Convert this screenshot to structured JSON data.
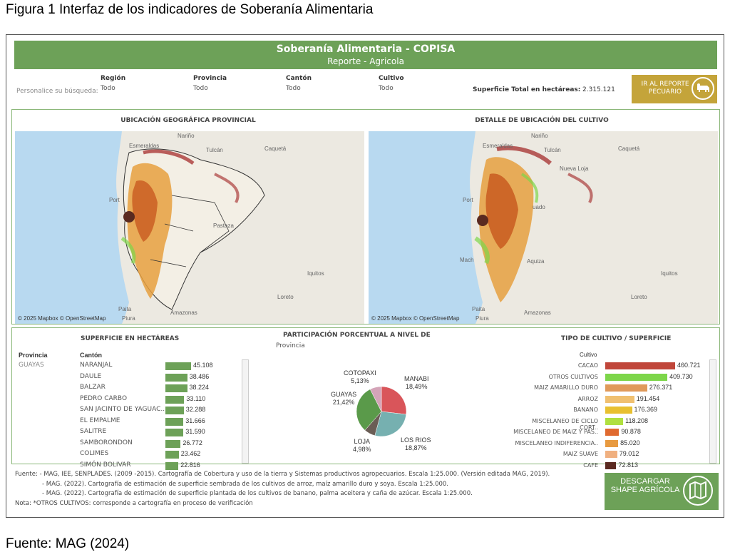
{
  "figure_title": "Figura 1 Interfaz de los indicadores de Soberanía Alimentaria",
  "figure_source": "Fuente: MAG (2024)",
  "header": {
    "title": "Soberanía Alimentaria - COPISA",
    "subtitle": "Reporte - Agricola"
  },
  "filters": {
    "personalice": "Personalice su búsqueda:",
    "region": {
      "label": "Región",
      "value": "Todo"
    },
    "provincia": {
      "label": "Provincia",
      "value": "Todo"
    },
    "canton": {
      "label": "Cantón",
      "value": "Todo"
    },
    "cultivo": {
      "label": "Cultivo",
      "value": "Todo"
    },
    "superficie_label": "Superficie Total en hectáreas:",
    "superficie_value": "2.315.121"
  },
  "btn_pecuario": "IR AL REPORTE PECUARIO",
  "maps": {
    "left_title": "UBICACIÓN GEOGRÁFICA PROVINCIAL",
    "right_title": "DETALLE DE UBICACIÓN DEL CULTIVO",
    "credit": "© 2025 Mapbox © OpenStreetMap",
    "places": {
      "narino": "Nariño",
      "esmeraldas": "Esmeraldas",
      "tulcan": "Tulcán",
      "caqueta": "Caquetá",
      "nueva_loja": "Nueva Loja",
      "port": "Port",
      "pastaza": "Pastaza",
      "iquitos": "Iquitos",
      "loreto": "Loreto",
      "paita": "Paita",
      "piura": "Piura",
      "amazonas": "Amazonas",
      "machala": "Mach",
      "aquiza": "Aquiza",
      "quito": "uado"
    }
  },
  "superficie": {
    "title": "SUPERFICIE EN HECTÁREAS",
    "col_provincia": "Provincia",
    "col_canton": "Cantón",
    "provincia": "GUAYAS",
    "rows": [
      {
        "canton": "NARANJAL",
        "value": "45.108",
        "n": 45108
      },
      {
        "canton": "DAULE",
        "value": "38.486",
        "n": 38486
      },
      {
        "canton": "BALZAR",
        "value": "38.224",
        "n": 38224
      },
      {
        "canton": "PEDRO CARBO",
        "value": "33.110",
        "n": 33110
      },
      {
        "canton": "SAN JACINTO DE YAGUAC..",
        "value": "32.288",
        "n": 32288
      },
      {
        "canton": "EL EMPALME",
        "value": "31.666",
        "n": 31666
      },
      {
        "canton": "SALITRE",
        "value": "31.590",
        "n": 31590
      },
      {
        "canton": "SAMBORONDON",
        "value": "26.772",
        "n": 26772
      },
      {
        "canton": "COLIMES",
        "value": "23.462",
        "n": 23462
      },
      {
        "canton": "SIMÓN BOLIVAR",
        "value": "22.816",
        "n": 22816
      }
    ]
  },
  "participacion": {
    "title": "PARTICIPACIÓN PORCENTUAL A NIVEL DE",
    "subtitle": "Provincia"
  },
  "chart_data": {
    "type": "pie",
    "title": "PARTICIPACIÓN PORCENTUAL A NIVEL DE",
    "slices": [
      {
        "name": "MANABI",
        "value": 18.49,
        "label": "18,49%",
        "color": "#d9555a"
      },
      {
        "name": "LOS RIOS",
        "value": 18.87,
        "label": "18,87%",
        "color": "#76b0b0"
      },
      {
        "name": "LOJA",
        "value": 4.98,
        "label": "4,98%",
        "color": "#6a5d55"
      },
      {
        "name": "GUAYAS",
        "value": 21.42,
        "label": "21,42%",
        "color": "#5a9a4a"
      },
      {
        "name": "COTOPAXI",
        "value": 5.13,
        "label": "5,13%",
        "color": "#d4a4b8"
      }
    ]
  },
  "cultivo": {
    "title": "TIPO DE CULTIVO / SUPERFICIE",
    "col": "Cultivo",
    "rows": [
      {
        "name": "CACAO",
        "value": "460.721",
        "n": 460721,
        "color": "#c0463a"
      },
      {
        "name": "OTROS CULTIVOS",
        "value": "409.730",
        "n": 409730,
        "color": "#7dd64a"
      },
      {
        "name": "MAIZ AMARILLO DURO",
        "value": "276.371",
        "n": 276371,
        "color": "#e09a5a"
      },
      {
        "name": "ARROZ",
        "value": "191.454",
        "n": 191454,
        "color": "#f0c070"
      },
      {
        "name": "BANANO",
        "value": "176.369",
        "n": 176369,
        "color": "#e8c030"
      },
      {
        "name": "MISCELANEO DE CICLO CORT..",
        "value": "118.208",
        "n": 118208,
        "color": "#b0e040"
      },
      {
        "name": "MISCELANEO DE MAIZ Y PAS..",
        "value": "90.878",
        "n": 90878,
        "color": "#e06a30"
      },
      {
        "name": "MISCELANEO INDIFERENCIA..",
        "value": "85.020",
        "n": 85020,
        "color": "#e89a40"
      },
      {
        "name": "MAIZ SUAVE",
        "value": "79.012",
        "n": 79012,
        "color": "#f0b080"
      },
      {
        "name": "CAFE",
        "value": "72.813",
        "n": 72813,
        "color": "#5a2a20"
      }
    ]
  },
  "footer": {
    "l1": "Fuente: - MAG, IEE, SENPLADES. (2009 -2015). Cartografía de Cobertura y uso de la tierra y Sistemas productivos agropecuarios. Escala 1:25.000. (Versión editada MAG, 2019).",
    "l2": "- MAG. (2022). Cartografía de estimación de superficie sembrada de los cultivos de arroz, maíz amarillo duro y soya. Escala 1:25.000.",
    "l3": "- MAG. (2022). Cartografía de estimación de superficie plantada de los cultivos de banano, palma aceitera y caña de azúcar. Escala 1:25.000.",
    "l4": "Nota: *OTROS CULTIVOS: corresponde a cartografía en proceso de verificación"
  },
  "btn_descargar": "DESCARGAR SHAPE AGRÍCOLA"
}
